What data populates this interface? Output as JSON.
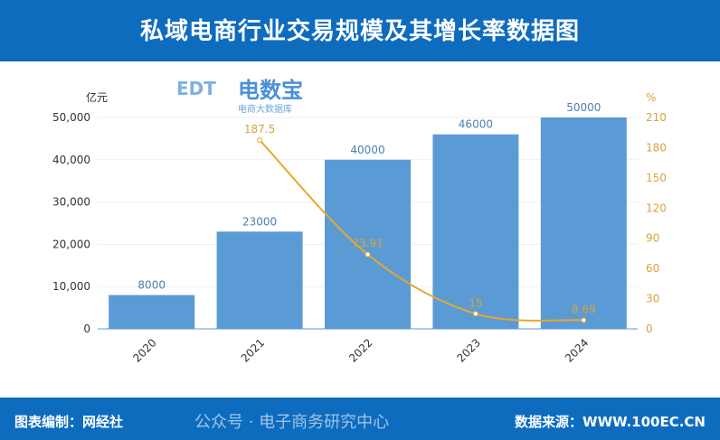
{
  "title": "私域电商行业交易规模及其增长率数据图",
  "footer": {
    "left": "图表编制：网经社",
    "right": "数据来源：WWW.100EC.CN",
    "watermark": "公众号 · 电子商务研究中心"
  },
  "logo": {
    "name": "电数宝",
    "text": "EDT",
    "subtitle": "电商大数据库"
  },
  "colors": {
    "header": "#0e6cbf",
    "bar": "#5b9bd5",
    "line": "#e8a82a"
  },
  "chart_data": {
    "type": "bar+line",
    "categories": [
      "2020",
      "2021",
      "2022",
      "2023",
      "2024"
    ],
    "series": [
      {
        "type": "bar",
        "axis": "left",
        "values": [
          8000,
          23000,
          40000,
          46000,
          50000
        ],
        "labels": [
          "8000",
          "23000",
          "40000",
          "46000",
          "50000"
        ]
      },
      {
        "type": "line",
        "axis": "right",
        "values": [
          null,
          187.5,
          73.91,
          15,
          8.69
        ],
        "labels": [
          "",
          "187.5",
          "73.91",
          "15",
          "8.69"
        ]
      }
    ],
    "left_axis": {
      "unit": "亿元",
      "ylim": [
        0,
        50000
      ],
      "ticks": [
        "0",
        "10,000",
        "20,000",
        "30,000",
        "40,000",
        "50,000"
      ]
    },
    "right_axis": {
      "unit": "%",
      "ylim": [
        0,
        210
      ],
      "ticks": [
        "0",
        "30",
        "60",
        "90",
        "120",
        "150",
        "180",
        "210"
      ]
    },
    "grid": true
  }
}
